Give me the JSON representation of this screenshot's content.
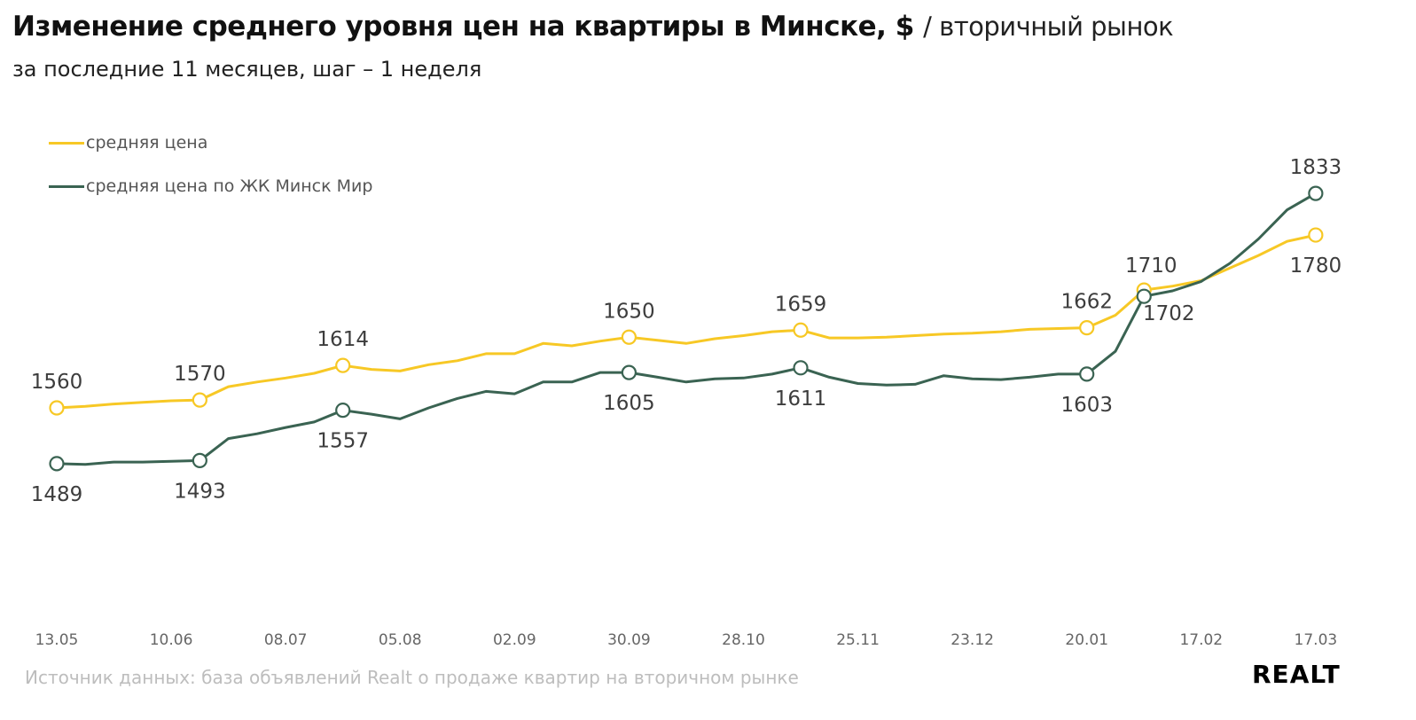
{
  "header": {
    "title": "Изменение среднего уровня цен на квартиры в Минске, $",
    "title_suffix": "/ вторичный рынок",
    "subtitle": "за последние 11 месяцев, шаг – 1 неделя"
  },
  "footer": {
    "source": "Источник данных: база объявлений Realt о продаже квартир на вторичном рынке",
    "logo": "REALT"
  },
  "chart_data": {
    "type": "line",
    "title": "Изменение среднего уровня цен на квартиры в Минске, $",
    "xlabel": "",
    "ylabel": "",
    "ylim": [
      1400,
      1880
    ],
    "grid": false,
    "legend_placement": "top-left",
    "x_tick_labels": [
      "13.05",
      "10.06",
      "08.07",
      "05.08",
      "02.09",
      "30.09",
      "28.10",
      "25.11",
      "23.12",
      "20.01",
      "17.02",
      "17.03"
    ],
    "x_tick_step_weeks": 4,
    "series": [
      {
        "name": "средняя цена",
        "color": "#f7c825",
        "values": [
          1560,
          1562,
          1565,
          1567,
          1569,
          1570,
          1587,
          1593,
          1598,
          1604,
          1614,
          1609,
          1607,
          1615,
          1620,
          1629,
          1629,
          1642,
          1639,
          1645,
          1650,
          1646,
          1642,
          1648,
          1652,
          1657,
          1659,
          1649,
          1649,
          1650,
          1652,
          1654,
          1655,
          1657,
          1660,
          1661,
          1662,
          1678,
          1710,
          1715,
          1722,
          1738,
          1754,
          1772,
          1780
        ],
        "annotations": [
          {
            "index": 0,
            "label": "1560",
            "placement": "above"
          },
          {
            "index": 5,
            "label": "1570",
            "placement": "above"
          },
          {
            "index": 10,
            "label": "1614",
            "placement": "above"
          },
          {
            "index": 20,
            "label": "1650",
            "placement": "above"
          },
          {
            "index": 26,
            "label": "1659",
            "placement": "above"
          },
          {
            "index": 36,
            "label": "1662",
            "placement": "above"
          },
          {
            "index": 38,
            "label": "1710",
            "placement": "above-right"
          },
          {
            "index": 44,
            "label": "1780",
            "placement": "below"
          }
        ]
      },
      {
        "name": "средняя цена по ЖК Минск Мир",
        "color": "#3a6352",
        "values": [
          1489,
          1488,
          1491,
          1491,
          1492,
          1493,
          1521,
          1527,
          1535,
          1542,
          1557,
          1552,
          1546,
          1560,
          1572,
          1581,
          1578,
          1593,
          1593,
          1605,
          1605,
          1599,
          1593,
          1597,
          1598,
          1603,
          1611,
          1599,
          1591,
          1589,
          1590,
          1601,
          1597,
          1596,
          1599,
          1603,
          1603,
          1632,
          1702,
          1709,
          1721,
          1744,
          1775,
          1812,
          1833
        ],
        "annotations": [
          {
            "index": 0,
            "label": "1489",
            "placement": "below"
          },
          {
            "index": 5,
            "label": "1493",
            "placement": "below"
          },
          {
            "index": 10,
            "label": "1557",
            "placement": "below"
          },
          {
            "index": 20,
            "label": "1605",
            "placement": "below"
          },
          {
            "index": 26,
            "label": "1611",
            "placement": "below"
          },
          {
            "index": 36,
            "label": "1603",
            "placement": "below"
          },
          {
            "index": 38,
            "label": "1702",
            "placement": "below-right"
          },
          {
            "index": 44,
            "label": "1833",
            "placement": "above"
          }
        ]
      }
    ]
  }
}
